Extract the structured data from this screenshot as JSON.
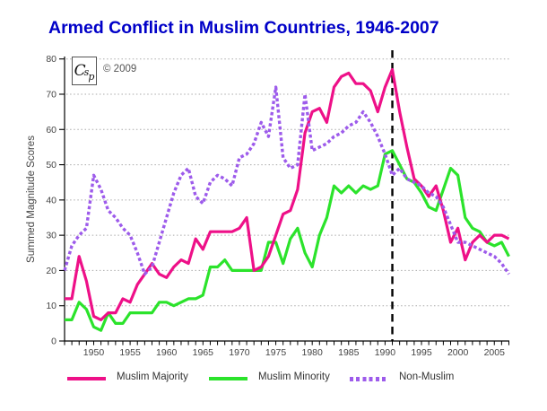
{
  "title": "Armed Conflict in Muslim Countries, 1946-2007",
  "logo": {
    "m1": "C",
    "m2": "s",
    "m3": "p",
    "copyright": "© 2009"
  },
  "chart_data": {
    "type": "line",
    "title": "Armed Conflict in Muslim Countries, 1946-2007",
    "xlabel": "",
    "ylabel": "Summed Magnitude Scores",
    "xlim": [
      1946,
      2007
    ],
    "ylim": [
      0,
      80
    ],
    "x_tick_labels": [
      1950,
      1955,
      1960,
      1965,
      1970,
      1975,
      1980,
      1985,
      1990,
      1995,
      2000,
      2005
    ],
    "y_ticks": [
      0,
      10,
      20,
      30,
      40,
      50,
      60,
      70,
      80
    ],
    "grid": "horizontal-dotted",
    "legend_position": "bottom",
    "annotations": [
      {
        "type": "vline",
        "x": 1991,
        "style": "dashed",
        "color": "#000000"
      }
    ],
    "x": [
      1946,
      1947,
      1948,
      1949,
      1950,
      1951,
      1952,
      1953,
      1954,
      1955,
      1956,
      1957,
      1958,
      1959,
      1960,
      1961,
      1962,
      1963,
      1964,
      1965,
      1966,
      1967,
      1968,
      1969,
      1970,
      1971,
      1972,
      1973,
      1974,
      1975,
      1976,
      1977,
      1978,
      1979,
      1980,
      1981,
      1982,
      1983,
      1984,
      1985,
      1986,
      1987,
      1988,
      1989,
      1990,
      1991,
      1992,
      1993,
      1994,
      1995,
      1996,
      1997,
      1998,
      1999,
      2000,
      2001,
      2002,
      2003,
      2004,
      2005,
      2006,
      2007
    ],
    "series": [
      {
        "name": "Muslim Majority",
        "color": "#EE1088",
        "style": "solid",
        "values": [
          12,
          12,
          24,
          17,
          7,
          6,
          8,
          8,
          12,
          11,
          16,
          19,
          22,
          19,
          18,
          21,
          23,
          22,
          29,
          26,
          31,
          31,
          31,
          31,
          32,
          35,
          20,
          21,
          24,
          30,
          36,
          37,
          43,
          59,
          65,
          66,
          62,
          72,
          75,
          76,
          73,
          73,
          71,
          65,
          72,
          77,
          65,
          55,
          46,
          44,
          41,
          44,
          37,
          28,
          32,
          23,
          28,
          30,
          28,
          30,
          30,
          29
        ]
      },
      {
        "name": "Muslim Minority",
        "color": "#2BE32B",
        "style": "solid",
        "values": [
          6,
          6,
          11,
          9,
          4,
          3,
          8,
          5,
          5,
          8,
          8,
          8,
          8,
          11,
          11,
          10,
          11,
          12,
          12,
          13,
          21,
          21,
          23,
          20,
          20,
          20,
          20,
          20,
          28,
          28,
          22,
          29,
          32,
          25,
          21,
          30,
          35,
          44,
          42,
          44,
          42,
          44,
          43,
          44,
          53,
          54,
          50,
          46,
          45,
          42,
          38,
          37,
          43,
          49,
          47,
          35,
          32,
          31,
          28,
          27,
          28,
          24
        ]
      },
      {
        "name": "Non-Muslim",
        "color": "#9D5BEB",
        "style": "dashed",
        "values": [
          20,
          27,
          30,
          32,
          47,
          43,
          37,
          35,
          32,
          30,
          25,
          19,
          21,
          28,
          35,
          42,
          47,
          49,
          41,
          39,
          45,
          47,
          46,
          44,
          52,
          53,
          56,
          62,
          58,
          72,
          52,
          49,
          50,
          70,
          54,
          55,
          56,
          58,
          59,
          61,
          62,
          65,
          62,
          58,
          53,
          47,
          49,
          46,
          45,
          44,
          42,
          41,
          38,
          33,
          28,
          28,
          27,
          26,
          25,
          24,
          22,
          19
        ]
      }
    ]
  }
}
